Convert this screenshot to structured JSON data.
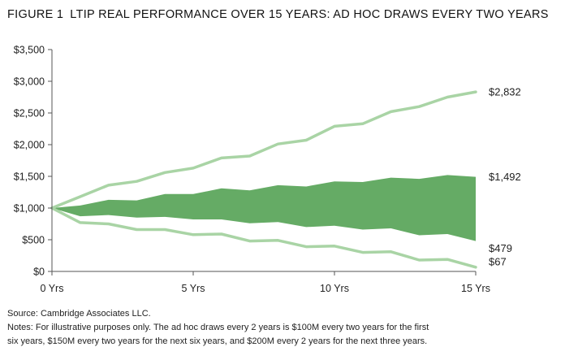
{
  "figure": {
    "number": "FIGURE 1",
    "title": "LTIP REAL PERFORMANCE OVER 15 YEARS: AD HOC DRAWS EVERY TWO YEARS"
  },
  "chart_data": {
    "type": "area",
    "title": "LTIP REAL PERFORMANCE OVER 15 YEARS: AD HOC DRAWS EVERY TWO YEARS",
    "x": [
      0,
      1,
      2,
      3,
      4,
      5,
      6,
      7,
      8,
      9,
      10,
      11,
      12,
      13,
      14,
      15
    ],
    "x_tick_labels": [
      "0 Yrs",
      "5 Yrs",
      "10 Yrs",
      "15 Yrs"
    ],
    "x_tick_values": [
      0,
      5,
      10,
      15
    ],
    "y_tick_labels": [
      "$0",
      "$500",
      "$1,000",
      "$1,500",
      "$2,000",
      "$2,500",
      "$3,000",
      "$3,500"
    ],
    "y_tick_values": [
      0,
      500,
      1000,
      1500,
      2000,
      2500,
      3000,
      3500
    ],
    "ylim": [
      0,
      3500
    ],
    "xlim": [
      0,
      15
    ],
    "grid": false,
    "colors": {
      "band": "#65ab65",
      "lines": "#a9d4a5"
    },
    "series": [
      {
        "role": "upper",
        "values": [
          1000,
          1180,
          1360,
          1420,
          1560,
          1630,
          1790,
          1820,
          2010,
          2070,
          2290,
          2330,
          2520,
          2600,
          2750,
          2832
        ],
        "end_label": "$2,832"
      },
      {
        "role": "band-top",
        "values": [
          1000,
          1040,
          1130,
          1120,
          1220,
          1220,
          1310,
          1280,
          1360,
          1340,
          1420,
          1410,
          1480,
          1460,
          1520,
          1492
        ],
        "end_label": "$1,492"
      },
      {
        "role": "band-bottom",
        "values": [
          1000,
          870,
          890,
          850,
          860,
          820,
          820,
          760,
          780,
          700,
          720,
          660,
          680,
          570,
          590,
          479
        ],
        "end_label": "$479"
      },
      {
        "role": "lower",
        "values": [
          1000,
          770,
          750,
          660,
          660,
          580,
          590,
          480,
          490,
          390,
          400,
          300,
          310,
          180,
          190,
          67
        ],
        "end_label": "$67"
      }
    ]
  },
  "footer": {
    "source": "Source: Cambridge Associates LLC.",
    "notes_line1": "Notes: For illustrative purposes only. The ad hoc draws every 2 years is $100M every two years for the first",
    "notes_line2": "six years, $150M every two years for the next six years, and $200M every 2 years for the next three years."
  }
}
